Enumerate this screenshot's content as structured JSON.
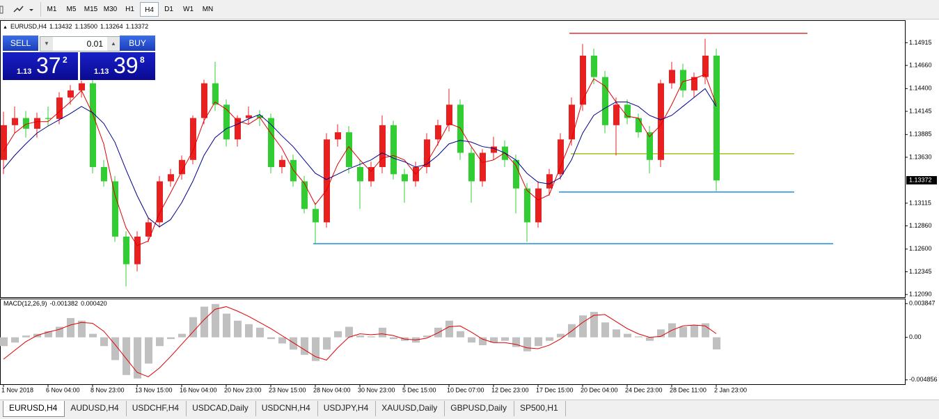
{
  "toolbar": {
    "timeframes": [
      "M1",
      "M5",
      "M15",
      "M30",
      "H1",
      "H4",
      "D1",
      "W1",
      "MN"
    ],
    "active": "H4"
  },
  "trade_panel": {
    "sell": "SELL",
    "buy": "BUY",
    "lot": 0.01,
    "bid": {
      "big": 1.13,
      "pips": 37,
      "fraction": 2
    },
    "ask": {
      "big": 1.13,
      "pips": 39,
      "fraction": 8
    }
  },
  "tabs": {
    "items": [
      "EURUSD,H4",
      "AUDUSD,H4",
      "USDCHF,H4",
      "USDCAD,Daily",
      "USDCNH,H4",
      "USDJPY,H4",
      "XAUUSD,Daily",
      "GBPUSD,Daily",
      "SP500,H1"
    ],
    "active": "EURUSD,H4"
  },
  "chart_data": [
    {
      "type": "candlestick",
      "title": "EURUSD,H4",
      "ohlc": [
        1.13432,
        {
          "value": 1.135,
          "label": "1.13500"
        },
        1.13264,
        1.13372
      ],
      "categories": [
        "1 Nov 2018",
        null,
        null,
        null,
        "6 Nov 04:00",
        null,
        null,
        null,
        "8 Nov 23:00",
        null,
        null,
        null,
        "13 Nov 15:00",
        null,
        null,
        null,
        "16 Nov 04:00",
        null,
        null,
        null,
        "20 Nov 23:00",
        null,
        null,
        null,
        "23 Nov 15:00",
        null,
        null,
        null,
        "28 Nov 04:00",
        null,
        null,
        null,
        "30 Nov 23:00",
        null,
        null,
        null,
        "5 Dec 15:00",
        null,
        null,
        null,
        "10 Dec 07:00",
        null,
        null,
        null,
        "12 Dec 23:00",
        null,
        null,
        null,
        "17 Dec 15:00",
        null,
        null,
        null,
        "20 Dec 04:00",
        null,
        null,
        null,
        "24 Dec 23:00",
        null,
        null,
        null,
        "28 Dec 11:00",
        null,
        null,
        null,
        "2 Jan 23:00"
      ],
      "open": [
        1.136,
        1.1399,
        1.1407,
        1.1395,
        1.1407,
        1.1406,
        1.143,
        1.1438,
        1.1446,
        1.1352,
        1.1336,
        1.1274,
        1.1243,
        1.1274,
        1.129,
        1.1336,
        1.1344,
        1.136,
        1.1407,
        1.1446,
        1.1422,
        1.1383,
        1.1407,
        1.141,
        1.1407,
        1.1352,
        1.136,
        1.1336,
        1.1305,
        1.129,
        1.1383,
        1.1391,
        1.1352,
        1.1336,
        1.1352,
        1.1399,
        1.1344,
        1.1336,
        1.1352,
        1.1383,
        1.1399,
        1.1422,
        1.1368,
        1.1336,
        1.1368,
        1.1375,
        1.136,
        1.1328,
        1.129,
        1.1328,
        1.1344,
        1.1383,
        1.1422,
        1.1477,
        1.1453,
        1.1399,
        1.1422,
        1.1407,
        1.1391,
        1.136,
        1.1446,
        1.1461,
        1.1438,
        1.1453,
        1.1477
      ],
      "high": [
        1.1414,
        1.142,
        1.1415,
        1.1413,
        1.142,
        1.1436,
        1.1444,
        1.1449,
        1.145,
        1.136,
        1.1342,
        1.128,
        1.128,
        1.1295,
        1.1342,
        1.135,
        1.1365,
        1.141,
        1.145,
        1.147,
        1.1428,
        1.141,
        1.142,
        1.1416,
        1.1412,
        1.1365,
        1.1366,
        1.1342,
        1.1312,
        1.139,
        1.14,
        1.1398,
        1.136,
        1.1358,
        1.141,
        1.1404,
        1.135,
        1.1358,
        1.139,
        1.1405,
        1.144,
        1.1428,
        1.1374,
        1.1372,
        1.1386,
        1.1382,
        1.1366,
        1.1334,
        1.1336,
        1.135,
        1.139,
        1.143,
        1.149,
        1.1485,
        1.146,
        1.143,
        1.1428,
        1.1412,
        1.1398,
        1.145,
        1.147,
        1.1468,
        1.1458,
        1.1496,
        1.1485
      ],
      "low": [
        1.1344,
        1.139,
        1.1385,
        1.1385,
        1.1398,
        1.14,
        1.1422,
        1.143,
        1.1345,
        1.133,
        1.1268,
        1.1218,
        1.1235,
        1.1268,
        1.1284,
        1.133,
        1.1338,
        1.1355,
        1.14,
        1.1415,
        1.1375,
        1.1375,
        1.14,
        1.1398,
        1.1345,
        1.1345,
        1.133,
        1.13,
        1.1266,
        1.1284,
        1.1375,
        1.1345,
        1.1305,
        1.133,
        1.1345,
        1.1338,
        1.1312,
        1.133,
        1.1345,
        1.1376,
        1.1392,
        1.136,
        1.1312,
        1.133,
        1.136,
        1.1352,
        1.13,
        1.1268,
        1.1284,
        1.132,
        1.1338,
        1.1376,
        1.1415,
        1.1445,
        1.139,
        1.1365,
        1.14,
        1.1385,
        1.1345,
        1.1352,
        1.144,
        1.143,
        1.143,
        1.1445,
        1.1325
      ],
      "close": [
        1.1399,
        1.1407,
        1.1395,
        1.1407,
        1.1406,
        1.143,
        1.1438,
        1.1446,
        1.1352,
        1.1336,
        1.1274,
        1.1243,
        1.1274,
        1.129,
        1.1336,
        1.1344,
        1.136,
        1.1407,
        1.1446,
        1.1422,
        1.1383,
        1.1407,
        1.141,
        1.1407,
        1.1352,
        1.136,
        1.1336,
        1.1305,
        1.129,
        1.1383,
        1.1391,
        1.1352,
        1.1336,
        1.1352,
        1.1399,
        1.1344,
        1.1336,
        1.1352,
        1.1383,
        1.1399,
        1.1422,
        1.1368,
        1.1336,
        1.1368,
        1.1375,
        1.136,
        1.1328,
        1.129,
        1.1328,
        1.1344,
        1.1383,
        1.1422,
        1.1477,
        1.1453,
        1.1399,
        1.1422,
        1.1407,
        1.1391,
        1.136,
        1.1446,
        1.1461,
        1.1438,
        1.1453,
        1.1477,
        1.1337
      ],
      "up_color": "#e8201f",
      "down_color": "#32cd32",
      "moving_averages": [
        {
          "color": "#e00000",
          "values": [
            1.137,
            1.139,
            1.14,
            1.1403,
            1.1403,
            1.1414,
            1.1425,
            1.1438,
            1.1412,
            1.1378,
            1.1321,
            1.1284,
            1.1264,
            1.1269,
            1.13,
            1.1323,
            1.1347,
            1.137,
            1.1404,
            1.1425,
            1.1417,
            1.1404,
            1.14,
            1.1408,
            1.139,
            1.1373,
            1.1349,
            1.1334,
            1.131,
            1.1326,
            1.1355,
            1.1375,
            1.136,
            1.1347,
            1.1362,
            1.1365,
            1.136,
            1.1344,
            1.1357,
            1.1378,
            1.1401,
            1.1396,
            1.1375,
            1.1357,
            1.136,
            1.1368,
            1.1354,
            1.1326,
            1.1315,
            1.1321,
            1.1352,
            1.1383,
            1.1427,
            1.1451,
            1.1443,
            1.1425,
            1.1409,
            1.1407,
            1.1386,
            1.1399,
            1.1422,
            1.1448,
            1.1451,
            1.1456,
            1.1422
          ]
        },
        {
          "color": "#00008b",
          "values": [
            1.135,
            1.1365,
            1.1378,
            1.139,
            1.1398,
            1.1405,
            1.1412,
            1.142,
            1.1413,
            1.1401,
            1.138,
            1.1349,
            1.132,
            1.1295,
            1.1285,
            1.1293,
            1.1312,
            1.1336,
            1.1365,
            1.1385,
            1.1395,
            1.14,
            1.1406,
            1.1411,
            1.14,
            1.1387,
            1.1375,
            1.136,
            1.1345,
            1.1338,
            1.1344,
            1.135,
            1.1355,
            1.136,
            1.1368,
            1.1362,
            1.1358,
            1.1352,
            1.1355,
            1.1365,
            1.1378,
            1.1382,
            1.138,
            1.1375,
            1.1373,
            1.1368,
            1.136,
            1.1345,
            1.1335,
            1.1333,
            1.134,
            1.136,
            1.139,
            1.141,
            1.1418,
            1.1425,
            1.1425,
            1.142,
            1.141,
            1.1405,
            1.141,
            1.142,
            1.143,
            1.144,
            1.142
          ]
        }
      ],
      "levels": [
        {
          "value": 1.1502,
          "color": "#e03030"
        },
        {
          "value": 1.1367,
          "color": "#a0c020"
        },
        {
          "value": 1.1324,
          "color": "#1e8fe0"
        },
        {
          "value": 1.1266,
          "color": "#1e8fe0"
        }
      ],
      "ylim": [
        1.1206,
        1.1516
      ],
      "yticks": [
        1.14915,
        {
          "value": 1.1466,
          "label": "1.14660"
        },
        {
          "value": 1.144,
          "label": "1.14400"
        },
        1.14145,
        1.13885,
        {
          "value": 1.1363,
          "label": "1.13630"
        },
        1.13115,
        {
          "value": 1.1286,
          "label": "1.12860"
        },
        {
          "value": 1.126,
          "label": "1.12600"
        },
        1.12345,
        {
          "value": 1.1209,
          "label": "1.12090"
        }
      ]
    },
    {
      "type": "macd",
      "title": "MACD(12,26,9)",
      "current_values": [
        -0.001382,
        {
          "value": 0.00042,
          "label": "0.000420"
        }
      ],
      "histogram": [
        -0.001,
        -0.0006,
        0.0002,
        0.0004,
        0.0007,
        0.0012,
        0.0022,
        0.0019,
        0.0004,
        -0.001,
        -0.0026,
        -0.0043,
        -0.0047,
        -0.003,
        -0.001,
        -0.0002,
        0.0004,
        0.0023,
        0.0035,
        0.0038,
        0.0027,
        0.0019,
        0.0015,
        0.0011,
        -0.0002,
        -0.0007,
        -0.0014,
        -0.002,
        -0.0027,
        -0.0014,
        0.0007,
        0.0012,
        0.0002,
        0.0001,
        0.0011,
        -0.0002,
        -0.0004,
        -0.0006,
        0.0002,
        0.0011,
        0.0019,
        0.0007,
        -0.0006,
        -0.0009,
        -0.0006,
        -0.0004,
        -0.0011,
        -0.0016,
        -0.001,
        -0.0004,
        0.0004,
        0.0015,
        0.0025,
        0.0029,
        0.0017,
        0.0009,
        0.0004,
        0.0001,
        -0.0004,
        0.0009,
        0.0016,
        0.0012,
        0.0014,
        0.0016,
        -0.001382
      ],
      "signal": [
        -0.0025,
        -0.0015,
        -0.0005,
        0.0002,
        0.0006,
        0.0009,
        0.0014,
        0.0017,
        0.0016,
        0.0007,
        -0.0008,
        -0.0024,
        -0.004,
        -0.0045,
        -0.0035,
        -0.0022,
        -0.0008,
        0.0006,
        0.002,
        0.0032,
        0.0035,
        0.003,
        0.0024,
        0.0017,
        0.001,
        0.0002,
        -0.0006,
        -0.0014,
        -0.0022,
        -0.0026,
        -0.0012,
        0.0,
        0.0004,
        0.0003,
        0.0004,
        0.0002,
        -0.0002,
        -0.0003,
        -0.0001,
        0.0005,
        0.0012,
        0.0013,
        0.0006,
        -0.0002,
        -0.0006,
        -0.0006,
        -0.0008,
        -0.0012,
        -0.0013,
        -0.0009,
        -0.0002,
        0.0007,
        0.0017,
        0.0025,
        0.0026,
        0.0018,
        0.001,
        0.0004,
        0.0,
        0.0001,
        0.0008,
        0.0013,
        0.0014,
        0.0013,
        0.00042
      ],
      "histogram_color": "#c0c0c0",
      "signal_color": "#e00000",
      "ylim": [
        -0.00535,
        0.00434
      ],
      "yticks": [
        0.003847,
        {
          "value": 0,
          "label": "0.00"
        },
        -0.004856
      ]
    }
  ]
}
